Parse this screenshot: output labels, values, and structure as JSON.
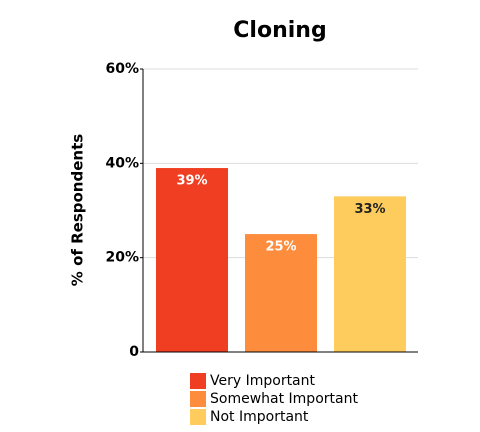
{
  "chart_data": {
    "type": "bar",
    "title": "Cloning",
    "y_label": "% of Respondents",
    "categories": [
      "Very Important",
      "Somewhat Important",
      "Not Important"
    ],
    "values": [
      39,
      25,
      33
    ],
    "value_labels": [
      "39%",
      "25%",
      "33%"
    ],
    "colors": [
      "#f03e22",
      "#fd8d3c",
      "#fecc5c"
    ],
    "ylim": [
      0,
      60
    ],
    "yticks": [
      0,
      {
        "value": 20,
        "label": "20%"
      },
      {
        "value": 40,
        "label": "40%"
      },
      {
        "value": 60,
        "label": "60%"
      }
    ],
    "grid": true,
    "legend": "bottom"
  }
}
